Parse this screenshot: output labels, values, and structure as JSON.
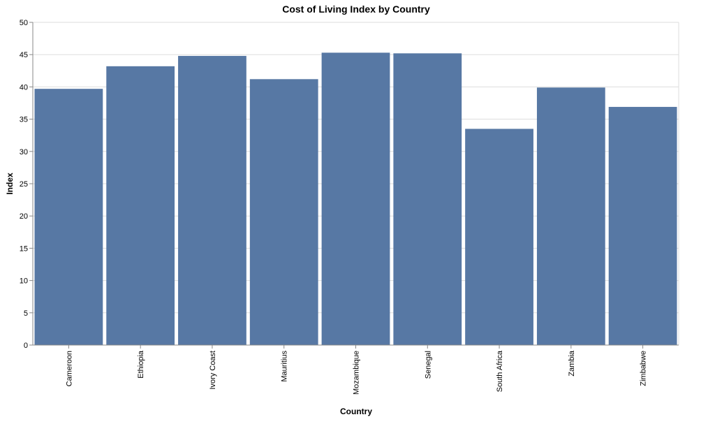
{
  "chart_data": {
    "type": "bar",
    "title": "Cost of Living Index by Country",
    "xlabel": "Country",
    "ylabel": "Index",
    "categories": [
      "Cameroon",
      "Ethiopia",
      "Ivory Coast",
      "Mauritius",
      "Mozambique",
      "Senegal",
      "South Africa",
      "Zambia",
      "Zimbabwe"
    ],
    "values": [
      39.7,
      43.2,
      44.8,
      41.2,
      45.3,
      45.2,
      33.5,
      39.9,
      36.9
    ],
    "ylim": [
      0,
      50
    ],
    "yticks": [
      0,
      5,
      10,
      15,
      20,
      25,
      30,
      35,
      40,
      45,
      50
    ],
    "grid": true,
    "bar_color": "#5778a4"
  }
}
